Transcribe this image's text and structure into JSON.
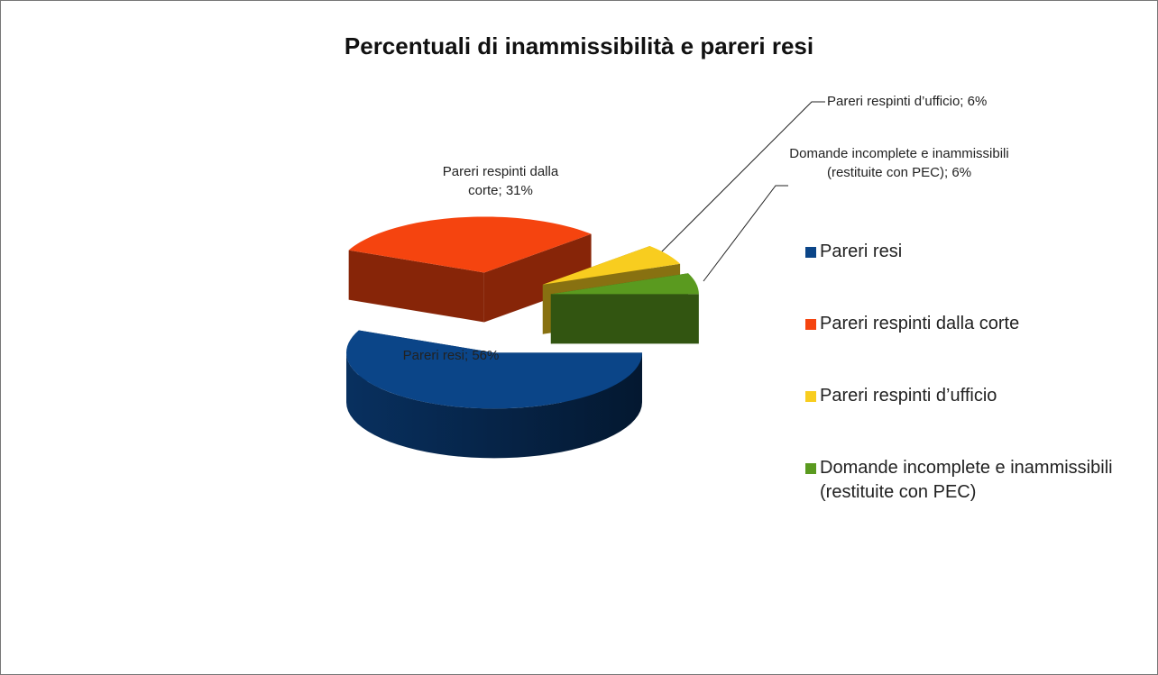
{
  "chart_data": {
    "type": "pie",
    "title": "Percentuali di inammissibilità e pareri resi",
    "categories": [
      "Pareri resi",
      "Pareri respinti dalla corte",
      "Pareri respinti d’ufficio",
      "Domande incomplete e inammissibili (restituite con PEC)"
    ],
    "values": [
      56,
      31,
      6,
      6
    ],
    "value_labels": [
      "Pareri resi; 56%",
      "Pareri respinti dalla corte; 31%",
      "Pareri respinti d’ufficio; 6%",
      "Domande incomplete e inammissibili (restituite con PEC); 6%"
    ],
    "colors": [
      "#0b4588",
      "#f5440f",
      "#f8cd1f",
      "#5a9a1f"
    ],
    "legend": "right"
  }
}
